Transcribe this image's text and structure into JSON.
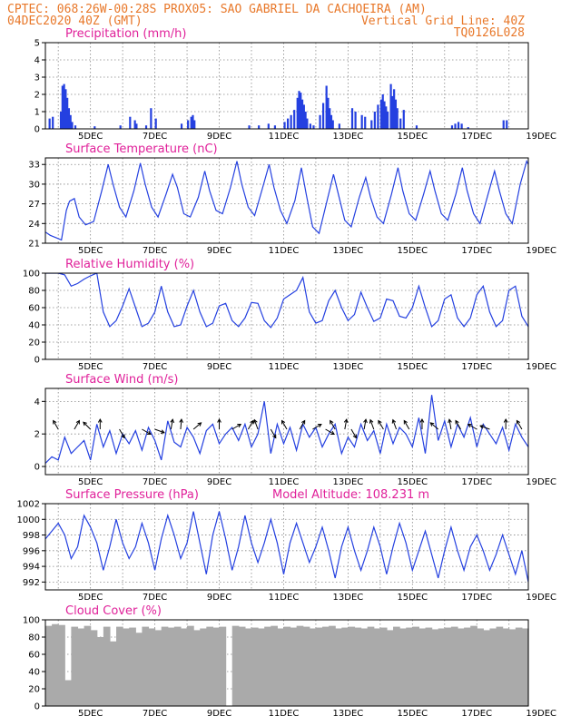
{
  "header": {
    "line1_left": "CPTEC:   068:26W-00:28S   PROX05: SAO GABRIEL DA CACHOEIRA (AM)",
    "line2_left": "04DEC2020 40Z (GMT)",
    "line2_right": "Vertical Grid Line: 40Z",
    "line3_right": "TQ0126L028"
  },
  "colors": {
    "series": "#2440e0",
    "titles": "#e0219a",
    "header": "#e8782a",
    "cloud": "#aaaaaa"
  },
  "chart_data": [
    {
      "type": "bar",
      "title": "Precipitation (mm/h)",
      "xlim": [
        4,
        19
      ],
      "ylim": [
        0,
        5
      ],
      "yticks": [
        0,
        1,
        2,
        3,
        4,
        5
      ],
      "xtick_labels": [
        "5DEC",
        "7DEC",
        "9DEC",
        "11DEC",
        "13DEC",
        "15DEC",
        "17DEC",
        "19DEC"
      ],
      "x": [
        4.1,
        4.2,
        4.45,
        4.5,
        4.55,
        4.6,
        4.65,
        4.7,
        4.75,
        4.8,
        4.9,
        5.5,
        6.3,
        6.6,
        6.75,
        6.8,
        7.1,
        7.25,
        7.4,
        8.2,
        8.4,
        8.5,
        8.55,
        8.6,
        10.3,
        10.6,
        10.9,
        11.1,
        11.4,
        11.5,
        11.6,
        11.7,
        11.8,
        11.85,
        11.9,
        11.95,
        12.0,
        12.05,
        12.1,
        12.2,
        12.3,
        12.5,
        12.6,
        12.7,
        12.75,
        12.8,
        12.85,
        12.9,
        13.1,
        13.5,
        13.6,
        13.8,
        13.9,
        14.1,
        14.2,
        14.3,
        14.4,
        14.45,
        14.5,
        14.55,
        14.6,
        14.7,
        14.75,
        14.8,
        14.85,
        14.9,
        15.0,
        15.1,
        15.5,
        16.6,
        16.7,
        16.8,
        16.9,
        17.1,
        18.2,
        18.3
      ],
      "values": [
        0.6,
        0.7,
        1.0,
        2.5,
        2.6,
        2.3,
        1.8,
        1.2,
        0.8,
        0.4,
        0.2,
        0.15,
        0.2,
        0.7,
        0.5,
        0.3,
        0.2,
        1.2,
        0.6,
        0.3,
        0.5,
        0.7,
        0.8,
        0.5,
        0.2,
        0.2,
        0.3,
        0.2,
        0.4,
        0.6,
        0.8,
        1.1,
        1.8,
        2.2,
        2.1,
        1.7,
        1.4,
        1.0,
        0.6,
        0.3,
        0.2,
        0.8,
        1.5,
        2.5,
        1.8,
        1.2,
        0.8,
        0.5,
        0.3,
        1.2,
        1.0,
        0.8,
        0.7,
        0.5,
        1.0,
        1.4,
        1.7,
        2.0,
        1.6,
        1.3,
        1.0,
        2.6,
        1.9,
        2.3,
        1.7,
        1.2,
        0.6,
        1.1,
        0.2,
        0.2,
        0.3,
        0.4,
        0.3,
        0.1,
        0.5,
        0.5
      ]
    },
    {
      "type": "line",
      "title": "Surface Temperature (nC)",
      "xlim": [
        4,
        19
      ],
      "ylim": [
        21,
        34
      ],
      "yticks": [
        21,
        24,
        27,
        30,
        33
      ],
      "xtick_labels": [
        "5DEC",
        "7DEC",
        "9DEC",
        "11DEC",
        "13DEC",
        "15DEC",
        "17DEC",
        "19DEC"
      ],
      "x": [
        4.0,
        4.15,
        4.35,
        4.5,
        4.65,
        4.75,
        4.9,
        5.05,
        5.25,
        5.5,
        5.75,
        5.95,
        6.1,
        6.3,
        6.5,
        6.75,
        6.95,
        7.1,
        7.3,
        7.5,
        7.75,
        7.95,
        8.1,
        8.3,
        8.5,
        8.75,
        8.95,
        9.1,
        9.3,
        9.5,
        9.75,
        9.95,
        10.1,
        10.3,
        10.5,
        10.75,
        10.95,
        11.1,
        11.3,
        11.5,
        11.75,
        11.95,
        12.1,
        12.3,
        12.5,
        12.75,
        12.95,
        13.1,
        13.3,
        13.5,
        13.75,
        13.95,
        14.1,
        14.3,
        14.5,
        14.75,
        14.95,
        15.1,
        15.3,
        15.5,
        15.75,
        15.95,
        16.1,
        16.3,
        16.5,
        16.75,
        16.95,
        17.1,
        17.3,
        17.5,
        17.75,
        17.95,
        18.1,
        18.3,
        18.5,
        18.75,
        18.95,
        19.0
      ],
      "values": [
        22.7,
        22.2,
        21.8,
        21.5,
        26.0,
        27.4,
        27.8,
        25.0,
        23.8,
        24.3,
        29.0,
        33.0,
        30.0,
        26.5,
        25.0,
        29.0,
        33.2,
        30.0,
        26.5,
        25.0,
        28.5,
        31.5,
        29.5,
        25.5,
        25.0,
        28.0,
        32.0,
        29.0,
        26.0,
        25.5,
        29.5,
        33.5,
        30.0,
        26.5,
        25.2,
        29.5,
        33.0,
        29.5,
        26.0,
        24.0,
        27.5,
        32.5,
        28.5,
        23.5,
        22.5,
        27.5,
        31.5,
        28.5,
        24.5,
        23.5,
        28.0,
        31.0,
        28.0,
        25.0,
        24.0,
        28.5,
        32.5,
        29.0,
        25.5,
        24.5,
        28.5,
        32.0,
        29.0,
        25.5,
        24.5,
        28.5,
        32.5,
        29.0,
        25.5,
        24.0,
        28.5,
        32.0,
        29.0,
        25.5,
        24.0,
        30.0,
        33.5,
        33.0
      ]
    },
    {
      "type": "line",
      "title": "Relative Humidity (%)",
      "xlim": [
        4,
        19
      ],
      "ylim": [
        0,
        100
      ],
      "yticks": [
        0,
        20,
        40,
        60,
        80,
        100
      ],
      "xtick_labels": [
        "5DEC",
        "7DEC",
        "9DEC",
        "11DEC",
        "13DEC",
        "15DEC",
        "17DEC",
        "19DEC"
      ],
      "x": [
        4.0,
        4.2,
        4.4,
        4.6,
        4.8,
        5.0,
        5.2,
        5.4,
        5.6,
        5.8,
        6.0,
        6.2,
        6.4,
        6.6,
        6.8,
        7.0,
        7.2,
        7.4,
        7.6,
        7.8,
        8.0,
        8.2,
        8.4,
        8.6,
        8.8,
        9.0,
        9.2,
        9.4,
        9.6,
        9.8,
        10.0,
        10.2,
        10.4,
        10.6,
        10.8,
        11.0,
        11.2,
        11.4,
        11.6,
        11.8,
        12.0,
        12.2,
        12.4,
        12.6,
        12.8,
        13.0,
        13.2,
        13.4,
        13.6,
        13.8,
        14.0,
        14.2,
        14.4,
        14.6,
        14.8,
        15.0,
        15.2,
        15.4,
        15.6,
        15.8,
        16.0,
        16.2,
        16.4,
        16.6,
        16.8,
        17.0,
        17.2,
        17.4,
        17.6,
        17.8,
        18.0,
        18.2,
        18.4,
        18.6,
        18.8,
        19.0
      ],
      "values": [
        100,
        100,
        100,
        98,
        85,
        88,
        93,
        97,
        100,
        55,
        38,
        45,
        62,
        82,
        60,
        38,
        42,
        55,
        85,
        55,
        38,
        40,
        62,
        80,
        55,
        38,
        42,
        62,
        65,
        45,
        38,
        48,
        66,
        65,
        45,
        37,
        48,
        70,
        75,
        80,
        95,
        55,
        42,
        45,
        68,
        80,
        60,
        45,
        52,
        78,
        60,
        44,
        48,
        70,
        68,
        50,
        48,
        60,
        85,
        60,
        38,
        45,
        70,
        75,
        48,
        38,
        48,
        75,
        85,
        55,
        38,
        45,
        80,
        85,
        50,
        38
      ]
    },
    {
      "type": "line",
      "title": "Surface Wind (m/s)",
      "xlim": [
        4,
        19
      ],
      "ylim": [
        -0.5,
        4.8
      ],
      "yticks": [
        0,
        2,
        4
      ],
      "xtick_labels": [
        "5DEC",
        "7DEC",
        "9DEC",
        "11DEC",
        "13DEC",
        "15DEC",
        "17DEC",
        "19DEC"
      ],
      "x": [
        4.0,
        4.2,
        4.4,
        4.6,
        4.8,
        5.0,
        5.2,
        5.4,
        5.6,
        5.8,
        6.0,
        6.2,
        6.4,
        6.6,
        6.8,
        7.0,
        7.2,
        7.4,
        7.6,
        7.8,
        8.0,
        8.2,
        8.4,
        8.6,
        8.8,
        9.0,
        9.2,
        9.4,
        9.6,
        9.8,
        10.0,
        10.2,
        10.4,
        10.6,
        10.8,
        11.0,
        11.2,
        11.4,
        11.6,
        11.8,
        12.0,
        12.2,
        12.4,
        12.6,
        12.8,
        13.0,
        13.2,
        13.4,
        13.6,
        13.8,
        14.0,
        14.2,
        14.4,
        14.6,
        14.8,
        15.0,
        15.2,
        15.4,
        15.6,
        15.8,
        16.0,
        16.2,
        16.4,
        16.6,
        16.8,
        17.0,
        17.2,
        17.4,
        17.6,
        17.8,
        18.0,
        18.2,
        18.4,
        18.6,
        18.8,
        19.0
      ],
      "values": [
        0.2,
        0.6,
        0.4,
        1.8,
        0.8,
        1.2,
        1.6,
        0.4,
        2.6,
        1.2,
        2.2,
        0.8,
        2.0,
        1.4,
        2.2,
        1.0,
        2.4,
        1.6,
        0.4,
        2.8,
        1.5,
        1.2,
        2.4,
        1.8,
        0.8,
        2.2,
        2.6,
        1.4,
        2.0,
        2.4,
        1.6,
        2.6,
        1.2,
        2.0,
        4.0,
        0.8,
        2.6,
        1.4,
        2.4,
        1.0,
        2.6,
        1.8,
        2.4,
        1.2,
        2.0,
        2.6,
        0.8,
        1.8,
        1.2,
        2.6,
        1.6,
        2.2,
        0.8,
        2.6,
        1.4,
        2.4,
        2.0,
        1.2,
        3.0,
        0.8,
        4.4,
        1.6,
        2.8,
        1.2,
        2.6,
        1.8,
        3.0,
        1.2,
        2.6,
        2.0,
        1.4,
        2.4,
        1.0,
        2.6,
        1.8,
        1.2
      ],
      "arrows_x": [
        4.4,
        4.9,
        5.4,
        5.7,
        6.3,
        7.0,
        7.4,
        7.9,
        8.2,
        8.6,
        9.4,
        9.8,
        10.3,
        10.6,
        11.0,
        11.5,
        11.9,
        12.3,
        12.7,
        13.0,
        13.3,
        13.5,
        13.9,
        14.2,
        14.5,
        14.9,
        15.3,
        15.7,
        16.2,
        16.6,
        16.9,
        17.4,
        17.8,
        18.3,
        18.8
      ],
      "arrows_deg": [
        120,
        60,
        135,
        90,
        300,
        330,
        340,
        80,
        85,
        40,
        90,
        30,
        60,
        110,
        300,
        120,
        60,
        30,
        330,
        120,
        80,
        300,
        80,
        110,
        120,
        110,
        120,
        90,
        140,
        100,
        120,
        150,
        160,
        90,
        120
      ]
    },
    {
      "type": "line",
      "title": "Surface Pressure (hPa)",
      "annotation": "Model Altitude: 108.231 m",
      "xlim": [
        4,
        19
      ],
      "ylim": [
        991,
        1002
      ],
      "yticks": [
        992,
        994,
        996,
        998,
        1000,
        1002
      ],
      "xtick_labels": [
        "5DEC",
        "7DEC",
        "9DEC",
        "11DEC",
        "13DEC",
        "15DEC",
        "17DEC",
        "19DEC"
      ],
      "x": [
        4.0,
        4.2,
        4.4,
        4.6,
        4.8,
        5.0,
        5.2,
        5.4,
        5.6,
        5.8,
        6.0,
        6.2,
        6.4,
        6.6,
        6.8,
        7.0,
        7.2,
        7.4,
        7.6,
        7.8,
        8.0,
        8.2,
        8.4,
        8.6,
        8.8,
        9.0,
        9.2,
        9.4,
        9.6,
        9.8,
        10.0,
        10.2,
        10.4,
        10.6,
        10.8,
        11.0,
        11.2,
        11.4,
        11.6,
        11.8,
        12.0,
        12.2,
        12.4,
        12.6,
        12.8,
        13.0,
        13.2,
        13.4,
        13.6,
        13.8,
        14.0,
        14.2,
        14.4,
        14.6,
        14.8,
        15.0,
        15.2,
        15.4,
        15.6,
        15.8,
        16.0,
        16.2,
        16.4,
        16.6,
        16.8,
        17.0,
        17.2,
        17.4,
        17.6,
        17.8,
        18.0,
        18.2,
        18.4,
        18.6,
        18.8,
        19.0
      ],
      "values": [
        997.5,
        998.5,
        999.5,
        998.0,
        995.0,
        996.5,
        1000.5,
        999.0,
        997.0,
        993.5,
        996.5,
        1000.0,
        997.0,
        995.0,
        996.5,
        999.5,
        997.0,
        993.5,
        997.5,
        1000.5,
        998.0,
        995.0,
        997.0,
        1001.0,
        997.0,
        993.0,
        998.0,
        1001.0,
        997.5,
        993.5,
        996.5,
        1000.5,
        997.0,
        994.5,
        997.0,
        1000.0,
        997.0,
        993.0,
        997.0,
        999.5,
        997.0,
        994.5,
        996.5,
        999.0,
        996.0,
        992.5,
        996.5,
        999.0,
        996.0,
        993.5,
        996.0,
        999.0,
        996.5,
        993.0,
        996.5,
        999.5,
        997.0,
        993.5,
        996.0,
        998.5,
        995.5,
        992.5,
        996.0,
        999.0,
        996.0,
        993.5,
        996.5,
        998.0,
        996.0,
        993.5,
        995.5,
        998.0,
        995.5,
        993.0,
        996.0,
        992.0
      ]
    },
    {
      "type": "bar",
      "title": "Cloud Cover (%)",
      "xlim": [
        4,
        19
      ],
      "ylim": [
        0,
        100
      ],
      "yticks": [
        0,
        20,
        40,
        60,
        80,
        100
      ],
      "xtick_labels": [
        "5DEC",
        "7DEC",
        "9DEC",
        "11DEC",
        "13DEC",
        "15DEC",
        "17DEC",
        "19DEC"
      ],
      "x": [
        4.0,
        4.2,
        4.4,
        4.6,
        4.8,
        5.0,
        5.2,
        5.4,
        5.6,
        5.8,
        6.0,
        6.2,
        6.4,
        6.6,
        6.8,
        7.0,
        7.2,
        7.4,
        7.6,
        7.8,
        8.0,
        8.2,
        8.4,
        8.6,
        8.8,
        9.0,
        9.2,
        9.4,
        9.6,
        9.8,
        10.0,
        10.2,
        10.4,
        10.6,
        10.8,
        11.0,
        11.2,
        11.4,
        11.6,
        11.8,
        12.0,
        12.2,
        12.4,
        12.6,
        12.8,
        13.0,
        13.2,
        13.4,
        13.6,
        13.8,
        14.0,
        14.2,
        14.4,
        14.6,
        14.8,
        15.0,
        15.2,
        15.4,
        15.6,
        15.8,
        16.0,
        16.2,
        16.4,
        16.6,
        16.8,
        17.0,
        17.2,
        17.4,
        17.6,
        17.8,
        18.0,
        18.2,
        18.4,
        18.6,
        18.8
      ],
      "values": [
        93,
        95,
        94,
        30,
        92,
        90,
        93,
        88,
        80,
        92,
        75,
        92,
        90,
        91,
        85,
        92,
        90,
        88,
        92,
        91,
        92,
        90,
        93,
        88,
        90,
        92,
        91,
        92,
        0,
        93,
        92,
        90,
        91,
        90,
        92,
        93,
        90,
        92,
        91,
        93,
        92,
        90,
        91,
        92,
        93,
        90,
        91,
        92,
        91,
        90,
        92,
        90,
        91,
        88,
        92,
        90,
        91,
        92,
        90,
        91,
        89,
        90,
        91,
        92,
        90,
        91,
        93,
        90,
        88,
        90,
        92,
        90,
        89,
        91,
        90
      ]
    }
  ]
}
